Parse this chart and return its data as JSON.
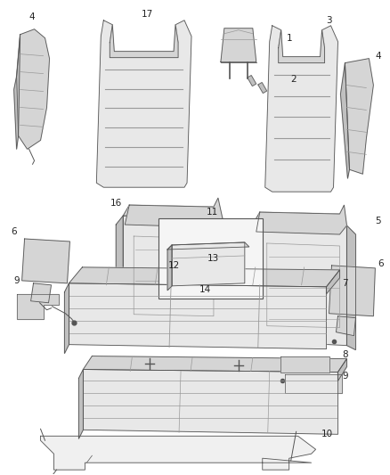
{
  "background_color": "#ffffff",
  "figsize": [
    4.38,
    5.33
  ],
  "dpi": 100,
  "line_color": "#555555",
  "fill_light": "#e8e8e8",
  "fill_mid": "#d5d5d5",
  "fill_dark": "#c0c0c0",
  "stripe_color": "#999999",
  "label_fontsize": 7.5,
  "label_color": "#222222"
}
